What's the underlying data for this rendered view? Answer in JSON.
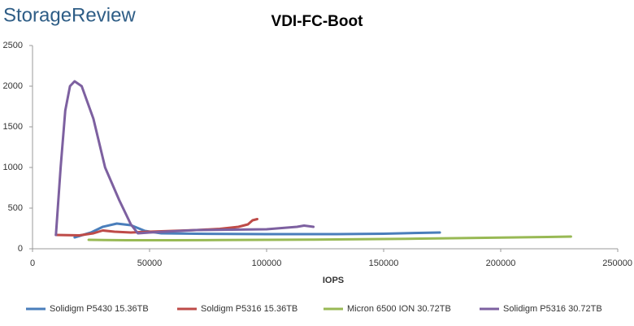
{
  "logo": "StorageReview",
  "chart_data": {
    "type": "line",
    "title": "VDI-FC-Boot",
    "x_label": "IOPS",
    "xlim": [
      0,
      250000
    ],
    "xticks": [
      0,
      50000,
      100000,
      150000,
      200000,
      250000
    ],
    "ylim": [
      0,
      2500
    ],
    "yticks": [
      0,
      500,
      1000,
      1500,
      2000,
      2500
    ],
    "grid": false,
    "legend": "bottom",
    "series": [
      {
        "name": "Solidigm P5430 15.36TB",
        "color": "#4a7ebb",
        "x": [
          18000,
          25000,
          30000,
          36000,
          42000,
          48000,
          55000,
          70000,
          100000,
          130000,
          150000,
          165000,
          174000
        ],
        "values": [
          140,
          200,
          270,
          310,
          290,
          220,
          190,
          185,
          180,
          180,
          185,
          195,
          200
        ]
      },
      {
        "name": "Soldigm P5316 15.36TB",
        "color": "#be4b48",
        "x": [
          10000,
          20000,
          26000,
          30000,
          35000,
          42000,
          50000,
          60000,
          70000,
          80000,
          88000,
          92000,
          94000,
          96000
        ],
        "values": [
          170,
          165,
          190,
          225,
          210,
          200,
          210,
          220,
          230,
          245,
          270,
          300,
          350,
          365
        ]
      },
      {
        "name": "Micron 6500 ION 30.72TB",
        "color": "#98b954",
        "x": [
          24000,
          40000,
          60000,
          80000,
          100000,
          120000,
          140000,
          160000,
          180000,
          200000,
          220000,
          230000
        ],
        "values": [
          110,
          105,
          105,
          107,
          110,
          113,
          118,
          123,
          130,
          138,
          145,
          150
        ]
      },
      {
        "name": "Solidigm P5316 30.72TB",
        "color": "#7d60a0",
        "x": [
          10000,
          12000,
          14000,
          16000,
          18000,
          21000,
          26000,
          31000,
          37000,
          42000,
          45000,
          50000,
          70000,
          100000,
          113000,
          116000,
          120000
        ],
        "values": [
          170,
          1000,
          1700,
          2000,
          2060,
          2000,
          1600,
          1000,
          600,
          300,
          190,
          200,
          230,
          240,
          270,
          285,
          270
        ]
      }
    ]
  }
}
